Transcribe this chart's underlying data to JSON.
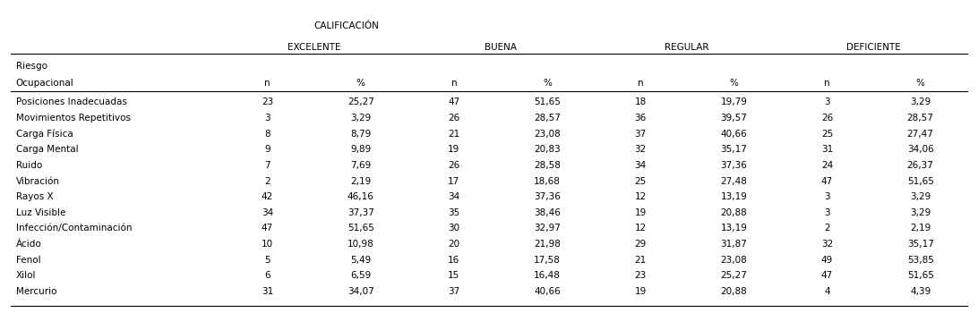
{
  "header1": "CALIFICACIÓN",
  "col_groups": [
    "EXCELENTE",
    "BUENA",
    "REGULAR",
    "DEFICIENTE"
  ],
  "col_subheaders": [
    "n",
    "%",
    "n",
    "%",
    "n",
    "%",
    "n",
    "%"
  ],
  "row_header1": "Riesgo",
  "row_header2": "Ocupacional",
  "rows": [
    [
      "Posiciones Inadecuadas",
      "23",
      "25,27",
      "47",
      "51,65",
      "18",
      "19,79",
      "3",
      "3,29"
    ],
    [
      "Movimientos Repetitivos",
      "3",
      "3,29",
      "26",
      "28,57",
      "36",
      "39,57",
      "26",
      "28,57"
    ],
    [
      "Carga Física",
      "8",
      "8,79",
      "21",
      "23,08",
      "37",
      "40,66",
      "25",
      "27,47"
    ],
    [
      "Carga Mental",
      "9",
      "9,89",
      "19",
      "20,83",
      "32",
      "35,17",
      "31",
      "34,06"
    ],
    [
      "Ruido",
      "7",
      "7,69",
      "26",
      "28,58",
      "34",
      "37,36",
      "24",
      "26,37"
    ],
    [
      "Vibración",
      "2",
      "2,19",
      "17",
      "18,68",
      "25",
      "27,48",
      "47",
      "51,65"
    ],
    [
      "Rayos X",
      "42",
      "46,16",
      "34",
      "37,36",
      "12",
      "13,19",
      "3",
      "3,29"
    ],
    [
      "Luz Visible",
      "34",
      "37,37",
      "35",
      "38,46",
      "19",
      "20,88",
      "3",
      "3,29"
    ],
    [
      "Infección/Contaminación",
      "47",
      "51,65",
      "30",
      "32,97",
      "12",
      "13,19",
      "2",
      "2,19"
    ],
    [
      "Ácido",
      "10",
      "10,98",
      "20",
      "21,98",
      "29",
      "31,87",
      "32",
      "35,17"
    ],
    [
      "Fenol",
      "5",
      "5,49",
      "16",
      "17,58",
      "21",
      "23,08",
      "49",
      "53,85"
    ],
    [
      "Xilol",
      "6",
      "6,59",
      "15",
      "16,48",
      "23",
      "25,27",
      "47",
      "51,65"
    ],
    [
      "Mercurio",
      "31",
      "34,07",
      "37",
      "40,66",
      "19",
      "20,88",
      "4",
      "4,39"
    ]
  ],
  "bg_color": "#ffffff",
  "text_color": "#000000",
  "font_size": 7.5,
  "header_font_size": 7.5
}
